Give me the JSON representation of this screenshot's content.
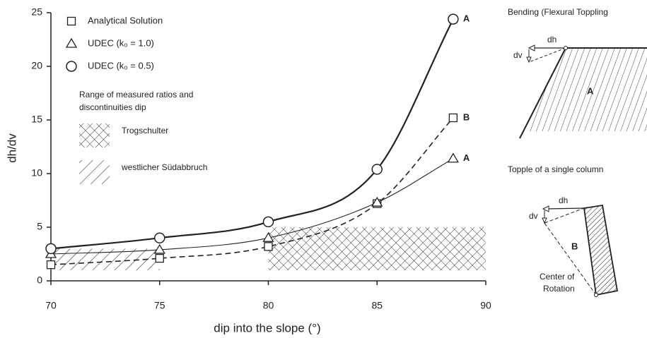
{
  "chart_data": {
    "type": "line",
    "x_label": "dip into the slope (°)",
    "y_label": "dh/dv",
    "x": [
      70,
      75,
      80,
      85,
      88.5
    ],
    "series": [
      {
        "name": "Analytical Solution",
        "marker": "square",
        "color": "#222222",
        "dash": true,
        "width": 1.6,
        "end_label": "B",
        "values": [
          1.5,
          2.1,
          3.2,
          7.2,
          15.2
        ]
      },
      {
        "name": "UDEC (k₀ = 1.0)",
        "marker": "triangle",
        "color": "#222222",
        "dash": false,
        "width": 1.1,
        "end_label": "A",
        "values": [
          2.5,
          2.9,
          4.0,
          7.3,
          11.4
        ]
      },
      {
        "name": "UDEC (k₀ = 0.5)",
        "marker": "circle",
        "color": "#222222",
        "dash": false,
        "width": 2.2,
        "end_label": "A",
        "values": [
          3.0,
          4.0,
          5.5,
          10.4,
          24.4
        ]
      }
    ],
    "range_legend_title": [
      "Range of measured ratios and",
      "discontinuities dip"
    ],
    "ranges": [
      {
        "name": "Trogschulter",
        "pattern": "crosshatch",
        "x": [
          80,
          90
        ],
        "y": [
          1,
          5
        ]
      },
      {
        "name": "westlicher Südabbruch",
        "pattern": "diagonal",
        "x": [
          70,
          75
        ],
        "y": [
          1,
          3
        ]
      }
    ],
    "xlim": [
      70,
      90
    ],
    "xticks": [
      70,
      75,
      80,
      85,
      90
    ],
    "ylim": [
      0,
      25
    ],
    "yticks": [
      0,
      5,
      10,
      15,
      20,
      25
    ]
  },
  "diagrams": {
    "bending": {
      "title": "Bending (Flexural Toppling",
      "dh": "dh",
      "dv": "dv",
      "label": "A"
    },
    "topple": {
      "title": "Topple of a single column",
      "dh": "dh",
      "dv": "dv",
      "label": "B",
      "center": [
        "Center of",
        "Rotation"
      ]
    }
  }
}
